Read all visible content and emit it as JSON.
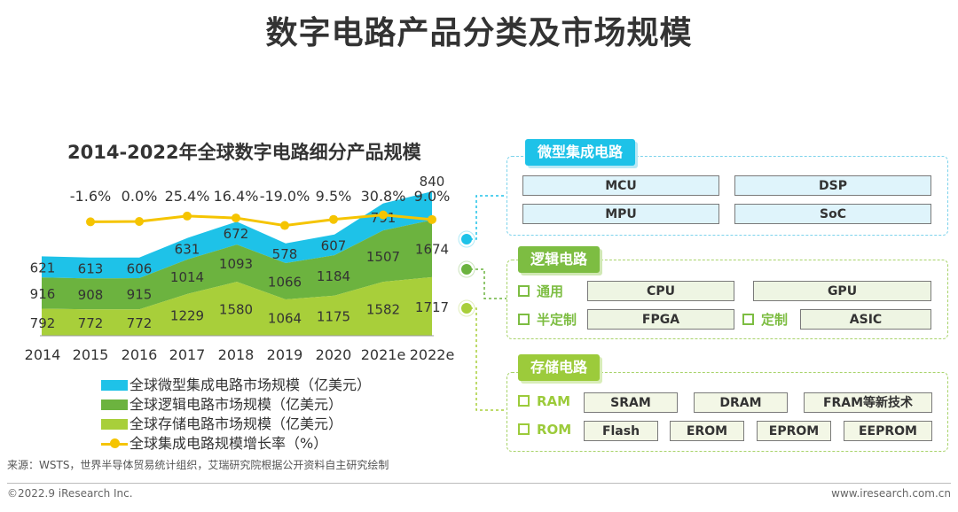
{
  "main_title": "数字电路产品分类及市场规模",
  "chart_data": {
    "type": "area",
    "title": "2014-2022年全球数字电路细分产品规模",
    "categories": [
      "2014",
      "2015",
      "2016",
      "2017",
      "2018",
      "2019",
      "2020",
      "2021e",
      "2022e"
    ],
    "series": [
      {
        "name": "全球存储电路市场规模（亿美元）",
        "values": [
          792,
          772,
          772,
          1229,
          1580,
          1064,
          1175,
          1582,
          1717
        ],
        "color": "#a8cf3a"
      },
      {
        "name": "全球逻辑电路市场规模（亿美元）",
        "values": [
          916,
          908,
          915,
          1014,
          1093,
          1066,
          1184,
          1507,
          1674
        ],
        "color": "#6cb33f"
      },
      {
        "name": "全球微型集成电路市场规模（亿美元）",
        "values": [
          621,
          613,
          606,
          631,
          672,
          578,
          607,
          791,
          840
        ],
        "color": "#1ec2e8"
      }
    ],
    "growth_series": {
      "name": "全球集成电路规模增长率（%）",
      "values": [
        -1.6,
        0.0,
        25.4,
        16.4,
        -19.0,
        9.5,
        30.8,
        9.0
      ],
      "labels": [
        "-1.6%",
        "0.0%",
        "25.4%",
        "16.4%",
        "-19.0%",
        "9.5%",
        "30.8%",
        "9.0%"
      ],
      "color": "#f5c400"
    },
    "stacked": true,
    "legend_position": "bottom",
    "grid": false
  },
  "panels": {
    "micro": {
      "title": "微型集成电路",
      "items": [
        "MCU",
        "DSP",
        "MPU",
        "SoC"
      ]
    },
    "logic": {
      "title": "逻辑电路",
      "general_label": "通用",
      "general_items": [
        "CPU",
        "GPU"
      ],
      "semi_label": "半定制",
      "semi_items": [
        "FPGA"
      ],
      "custom_label": "定制",
      "custom_items": [
        "ASIC"
      ]
    },
    "storage": {
      "title": "存储电路",
      "ram_label": "RAM",
      "ram_items": [
        "SRAM",
        "DRAM",
        "FRAM等新技术"
      ],
      "rom_label": "ROM",
      "rom_items": [
        "Flash",
        "EROM",
        "EPROM",
        "EEPROM"
      ]
    }
  },
  "source": "来源：WSTS，世界半导体贸易统计组织，艾瑞研究院根据公开资料自主研究绘制",
  "copyright": "©2022.9 iResearch Inc.",
  "site": "www.iresearch.com.cn",
  "colors": {
    "micro": "#1ec2e8",
    "logic": "#6cb33f",
    "storage": "#a8cf3a",
    "growth": "#f5c400"
  }
}
